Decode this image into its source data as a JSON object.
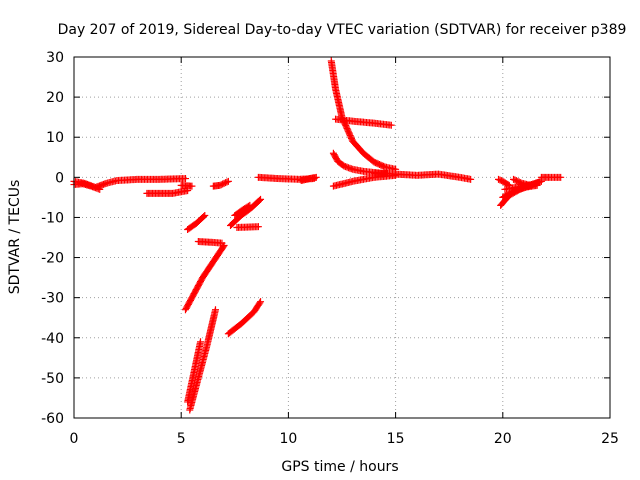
{
  "chart_data": {
    "type": "scatter",
    "title": "Day 207 of 2019, Sidereal Day-to-day VTEC variation (SDTVAR) for receiver p389",
    "xlabel": "GPS time / hours",
    "ylabel": "SDTVAR / TECUs",
    "xlim": [
      0,
      25
    ],
    "ylim": [
      -60,
      30
    ],
    "xticks": [
      0,
      5,
      10,
      15,
      20,
      25
    ],
    "yticks": [
      -60,
      -50,
      -40,
      -30,
      -20,
      -10,
      0,
      10,
      20,
      30
    ],
    "grid": true,
    "marker": "plus",
    "color": "#ff0000",
    "arcs": [
      {
        "x": [
          0.0,
          0.5,
          1.0,
          1.5,
          2.0,
          3.0,
          4.0,
          5.2
        ],
        "y": [
          -1.0,
          -1.5,
          -2.5,
          -1.5,
          -0.8,
          -0.5,
          -0.5,
          -0.3
        ]
      },
      {
        "x": [
          0.0,
          0.4,
          0.8,
          1.2
        ],
        "y": [
          -1.8,
          -1.6,
          -2.2,
          -3.0
        ]
      },
      {
        "x": [
          3.4,
          4.0,
          4.6,
          5.3
        ],
        "y": [
          -4.0,
          -4.0,
          -4.0,
          -3.3
        ]
      },
      {
        "x": [
          5.0,
          5.2,
          5.5
        ],
        "y": [
          -2.0,
          -2.1,
          -2.2
        ]
      },
      {
        "x": [
          5.3,
          5.7,
          6.1
        ],
        "y": [
          -13.0,
          -11.5,
          -9.5
        ]
      },
      {
        "x": [
          5.2,
          5.6,
          6.0,
          6.5,
          7.0
        ],
        "y": [
          -33.0,
          -29.0,
          -25.0,
          -21.0,
          -17.0
        ]
      },
      {
        "x": [
          5.8,
          6.4,
          6.9
        ],
        "y": [
          -16.0,
          -16.2,
          -16.4
        ]
      },
      {
        "x": [
          5.3,
          5.5,
          5.7,
          5.9
        ],
        "y": [
          -56.0,
          -51.0,
          -46.0,
          -41.0
        ]
      },
      {
        "x": [
          5.4,
          5.8,
          6.2,
          6.6
        ],
        "y": [
          -58.0,
          -50.0,
          -42.0,
          -33.0
        ]
      },
      {
        "x": [
          6.5,
          6.8,
          7.2
        ],
        "y": [
          -2.2,
          -2.0,
          -1.0
        ]
      },
      {
        "x": [
          7.3,
          7.8,
          8.3,
          8.7
        ],
        "y": [
          -12.0,
          -9.5,
          -7.5,
          -5.5
        ]
      },
      {
        "x": [
          7.6,
          8.1,
          8.6
        ],
        "y": [
          -12.5,
          -12.4,
          -12.3
        ]
      },
      {
        "x": [
          7.2,
          7.8,
          8.4,
          8.7
        ],
        "y": [
          -39.0,
          -36.5,
          -33.5,
          -31.0
        ]
      },
      {
        "x": [
          7.5,
          7.9,
          8.2
        ],
        "y": [
          -9.5,
          -8.0,
          -7.0
        ]
      },
      {
        "x": [
          8.6,
          9.5,
          10.5,
          11.2
        ],
        "y": [
          0.0,
          -0.3,
          -0.5,
          -0.3
        ]
      },
      {
        "x": [
          10.6,
          11.0,
          11.3
        ],
        "y": [
          -0.8,
          -0.3,
          0.0
        ]
      },
      {
        "x": [
          12.0,
          12.2,
          12.5,
          13.0,
          13.5,
          14.0,
          14.5,
          15.0
        ],
        "y": [
          29.0,
          22.0,
          15.0,
          9.0,
          6.0,
          3.8,
          2.6,
          2.0
        ]
      },
      {
        "x": [
          12.1,
          12.3,
          12.6,
          13.0,
          13.5,
          14.0,
          14.4,
          14.6
        ],
        "y": [
          6.0,
          4.0,
          2.8,
          2.0,
          1.5,
          1.2,
          1.0,
          1.0
        ]
      },
      {
        "x": [
          12.1,
          13.0,
          14.0,
          15.0
        ],
        "y": [
          -2.2,
          -1.0,
          0.0,
          0.5
        ]
      },
      {
        "x": [
          12.2,
          13.0,
          14.0,
          14.8
        ],
        "y": [
          14.5,
          14.0,
          13.5,
          13.0
        ]
      },
      {
        "x": [
          14.0,
          15.0,
          16.0,
          17.0,
          18.0,
          18.5
        ],
        "y": [
          1.0,
          0.8,
          0.5,
          0.8,
          0.0,
          -0.5
        ]
      },
      {
        "x": [
          19.8,
          20.0,
          20.3
        ],
        "y": [
          -0.5,
          -1.0,
          -2.0
        ]
      },
      {
        "x": [
          19.9,
          20.3,
          20.8,
          21.3,
          21.7
        ],
        "y": [
          -7.0,
          -4.5,
          -3.0,
          -2.0,
          -1.2
        ]
      },
      {
        "x": [
          20.0,
          20.5,
          21.0,
          21.6
        ],
        "y": [
          -5.0,
          -3.5,
          -2.5,
          -2.0
        ]
      },
      {
        "x": [
          20.1,
          20.6,
          21.2,
          21.8
        ],
        "y": [
          -3.0,
          -2.5,
          -2.0,
          -1.0
        ]
      },
      {
        "x": [
          20.5,
          20.9,
          21.3
        ],
        "y": [
          -0.5,
          -1.5,
          -2.0
        ]
      },
      {
        "x": [
          21.8,
          22.2,
          22.7
        ],
        "y": [
          0.0,
          0.0,
          0.0
        ]
      }
    ]
  }
}
